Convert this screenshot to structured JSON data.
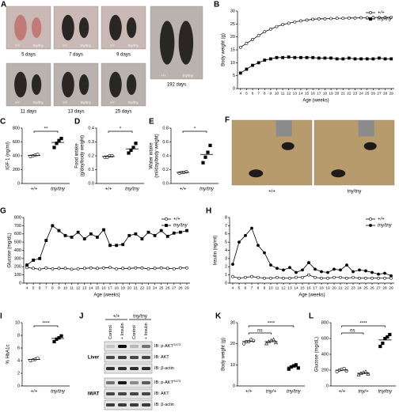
{
  "photos": {
    "panel": "A",
    "genotypes": [
      "+/+",
      "tny/tny"
    ],
    "captions": [
      "5 days",
      "7 days",
      "9 days",
      "11 days",
      "13 days",
      "25 days",
      "192 days"
    ]
  },
  "cage": {
    "panel": "F",
    "labels": [
      "+/+",
      "tny/tny"
    ]
  },
  "blot": {
    "panel": "J",
    "genotypes": [
      "+/+",
      "tny/tny"
    ],
    "treatments": [
      "Control",
      "+ Insulin",
      "Control",
      "+ Insulin"
    ],
    "tissues": [
      "Liver",
      "iWAT"
    ],
    "antibodies": [
      "IB: p-AKT",
      "IB: AKT",
      "IB: β-actin"
    ],
    "phospho_site": "S473"
  },
  "chart_data": [
    {
      "panel": "B",
      "type": "line",
      "ylabel": "Body weight (g)",
      "xlabel": "Age (weeks)",
      "x": [
        4,
        5,
        6,
        7,
        8,
        9,
        10,
        11,
        12,
        13,
        14,
        15,
        16,
        17,
        18,
        19,
        20,
        21,
        22,
        23,
        24,
        25,
        26,
        27,
        28,
        29
      ],
      "xlim": [
        3.5,
        29.5
      ],
      "xticks": [
        4,
        5,
        6,
        7,
        8,
        9,
        10,
        11,
        12,
        13,
        14,
        15,
        16,
        17,
        18,
        19,
        20,
        21,
        22,
        23,
        24,
        25,
        26,
        27,
        28,
        29
      ],
      "ylim": [
        0,
        30
      ],
      "yticks": [
        0,
        5,
        10,
        15,
        20,
        25,
        30
      ],
      "legend": "upper right",
      "series": [
        {
          "name": "+/+",
          "color": "#000000",
          "marker": "circle",
          "fill": "#ffffff",
          "values": [
            16,
            17.5,
            19,
            20.5,
            22,
            23,
            24,
            24.8,
            25.3,
            25.8,
            26.2,
            26.5,
            26.8,
            27,
            27,
            27.1,
            27.2,
            27.2,
            27.3,
            27.3,
            27.4,
            27.4,
            27.5,
            27.5,
            27.5,
            27.6
          ]
        },
        {
          "name": "tny/tny",
          "color": "#000000",
          "marker": "square",
          "fill": "#000000",
          "values": [
            6,
            7.5,
            9,
            10,
            11,
            11.5,
            12,
            12,
            12.2,
            12,
            12,
            12,
            12,
            11.8,
            11.8,
            11.8,
            11.5,
            11.5,
            11.8,
            11.5,
            11.5,
            11.5,
            11.5,
            11.8,
            11.5,
            11.5
          ]
        }
      ]
    },
    {
      "panel": "C",
      "type": "dot",
      "ylabel": "IGF-1 (ng/ml)",
      "categories": [
        "+/+",
        "tny/tny"
      ],
      "points": [
        [
          390,
          400,
          410,
          420
        ],
        [
          520,
          580,
          620,
          650
        ]
      ],
      "means": [
        405,
        593
      ],
      "markers": [
        "circle",
        "square"
      ],
      "fills": [
        "#ffffff",
        "#000000"
      ],
      "ylim": [
        0,
        800
      ],
      "yticks": [
        0,
        200,
        400,
        600,
        800
      ],
      "annotations": [
        "**"
      ]
    },
    {
      "panel": "D",
      "type": "dot",
      "ylabel": [
        "Food intake",
        "(g/day/body weight)"
      ],
      "categories": [
        "+/+",
        "tny/tny"
      ],
      "points": [
        [
          0.19,
          0.19,
          0.2,
          0.2
        ],
        [
          0.22,
          0.24,
          0.26,
          0.29
        ]
      ],
      "means": [
        0.195,
        0.25
      ],
      "markers": [
        "circle",
        "square"
      ],
      "fills": [
        "#ffffff",
        "#000000"
      ],
      "ylim": [
        0,
        0.4
      ],
      "yticks": [
        {
          "value": 0,
          "label": "0.0"
        },
        0.1,
        0.2,
        0.3,
        0.4
      ],
      "annotations": [
        "*"
      ]
    },
    {
      "panel": "E",
      "type": "dot",
      "ylabel": [
        "Water intake",
        "(ml/day/body weight)"
      ],
      "categories": [
        "+/+",
        "tny/tny"
      ],
      "points": [
        [
          0.15,
          0.16,
          0.16,
          0.17
        ],
        [
          0.3,
          0.38,
          0.45,
          0.55
        ]
      ],
      "means": [
        0.16,
        0.42
      ],
      "markers": [
        "circle",
        "square"
      ],
      "fills": [
        "#ffffff",
        "#000000"
      ],
      "ylim": [
        0,
        0.8
      ],
      "yticks": [
        {
          "value": 0,
          "label": "0.0"
        },
        0.2,
        0.4,
        0.6,
        0.8
      ],
      "annotations": [
        "*"
      ]
    },
    {
      "panel": "G",
      "type": "line",
      "ylabel": "Glucose (mg/dL)",
      "xlabel": "Age (weeks)",
      "x": [
        4,
        5,
        6,
        7,
        8,
        9,
        10,
        11,
        12,
        13,
        14,
        15,
        16,
        17,
        18,
        19,
        20,
        21,
        22,
        23,
        24,
        25,
        26,
        27,
        28,
        29
      ],
      "xlim": [
        3.5,
        29.5
      ],
      "xticks": [
        4,
        5,
        6,
        7,
        8,
        9,
        10,
        11,
        12,
        13,
        14,
        15,
        16,
        17,
        18,
        19,
        20,
        21,
        22,
        23,
        24,
        25,
        26,
        27,
        28,
        29
      ],
      "ylim": [
        0,
        800
      ],
      "yticks": [
        0,
        100,
        200,
        300,
        400,
        500,
        600,
        700,
        800
      ],
      "legend": "upper right",
      "series": [
        {
          "name": "+/+",
          "color": "#000000",
          "marker": "circle",
          "fill": "#ffffff",
          "values": [
            190,
            180,
            170,
            185,
            175,
            180,
            180,
            170,
            175,
            180,
            185,
            180,
            185,
            190,
            175,
            180,
            180,
            185,
            185,
            175,
            180,
            185,
            180,
            175,
            185,
            185
          ]
        },
        {
          "name": "tny/tny",
          "color": "#000000",
          "marker": "square",
          "fill": "#000000",
          "values": [
            220,
            280,
            300,
            520,
            700,
            640,
            580,
            560,
            620,
            540,
            600,
            560,
            650,
            460,
            460,
            470,
            580,
            600,
            540,
            620,
            580,
            640,
            570,
            610,
            620,
            640
          ]
        }
      ]
    },
    {
      "panel": "H",
      "type": "line",
      "ylabel": "Insulin (ng/ml)",
      "xlabel": "Age (weeks)",
      "x": [
        4,
        5,
        6,
        7,
        8,
        9,
        10,
        11,
        12,
        13,
        14,
        15,
        16,
        17,
        18,
        19,
        20,
        21,
        22,
        23,
        24,
        25,
        26,
        27,
        28,
        29
      ],
      "xlim": [
        3.5,
        29.5
      ],
      "xticks": [
        4,
        5,
        6,
        7,
        8,
        9,
        10,
        11,
        12,
        13,
        14,
        15,
        16,
        17,
        18,
        19,
        20,
        21,
        22,
        23,
        24,
        25,
        26,
        27,
        28,
        29
      ],
      "ylim": [
        0,
        8
      ],
      "yticks": [
        0,
        1,
        2,
        3,
        4,
        5,
        6,
        7,
        8
      ],
      "legend": "upper right",
      "series": [
        {
          "name": "+/+",
          "color": "#000000",
          "marker": "circle",
          "fill": "#ffffff",
          "values": [
            0.8,
            0.6,
            0.7,
            0.8,
            0.7,
            0.6,
            0.6,
            0.7,
            0.6,
            0.6,
            0.7,
            0.7,
            1.0,
            0.7,
            0.6,
            0.6,
            0.7,
            0.7,
            0.6,
            0.7,
            0.6,
            0.6,
            0.6,
            0.6,
            0.6,
            0.6
          ]
        },
        {
          "name": "tny/tny",
          "color": "#000000",
          "marker": "circle",
          "fill": "#000000",
          "values": [
            2.3,
            5,
            5.8,
            6.7,
            4.6,
            3.7,
            2.2,
            1.8,
            1.6,
            1.9,
            1.3,
            1.6,
            2.5,
            1.7,
            1.4,
            1.3,
            1.7,
            1.6,
            2.2,
            1.4,
            1.6,
            1.5,
            1.3,
            1.1,
            1.2,
            0.9
          ]
        }
      ]
    },
    {
      "panel": "I",
      "type": "dot",
      "ylabel": "% HbA1c",
      "categories": [
        "+/+",
        "tny/tny"
      ],
      "points": [
        [
          4.0,
          4.1,
          4.2,
          4.4
        ],
        [
          7.0,
          7.4,
          7.6,
          7.9
        ]
      ],
      "means": [
        4.2,
        7.5
      ],
      "markers": [
        "circle",
        "square"
      ],
      "fills": [
        "#ffffff",
        "#000000"
      ],
      "ylim": [
        0,
        10
      ],
      "yticks": [
        0,
        2,
        4,
        6,
        8,
        10
      ],
      "annotations": [
        "****"
      ]
    },
    {
      "panel": "K",
      "type": "dot",
      "ylabel": "Body weight (g)",
      "categories": [
        "+/+",
        "tny/+",
        "tny/tny"
      ],
      "points": [
        [
          20,
          21,
          21,
          22,
          21.5
        ],
        [
          20,
          21,
          21.5,
          22,
          20.5
        ],
        [
          8,
          9,
          9.5,
          10,
          8.5
        ]
      ],
      "means": [
        21.1,
        21,
        9
      ],
      "markers": [
        "circle",
        "triangle",
        "square"
      ],
      "fills": [
        "#ffffff",
        "#ffffff",
        "#000000"
      ],
      "ylim": [
        0,
        30
      ],
      "yticks": [
        0,
        10,
        20,
        30
      ],
      "annotations": [
        "ns",
        "****"
      ]
    },
    {
      "panel": "L",
      "type": "dot",
      "ylabel": "Glucose (mg/dL)",
      "categories": [
        "+/+",
        "tny/+",
        "tny/tny"
      ],
      "points": [
        [
          180,
          200,
          210,
          220,
          190
        ],
        [
          140,
          160,
          170,
          180,
          150
        ],
        [
          500,
          540,
          600,
          620,
          650
        ]
      ],
      "means": [
        200,
        160,
        582
      ],
      "markers": [
        "circle",
        "triangle",
        "square"
      ],
      "fills": [
        "#ffffff",
        "#ffffff",
        "#000000"
      ],
      "ylim": [
        0,
        800
      ],
      "yticks": [
        0,
        200,
        400,
        600,
        800
      ],
      "annotations": [
        "ns",
        "****"
      ]
    }
  ]
}
